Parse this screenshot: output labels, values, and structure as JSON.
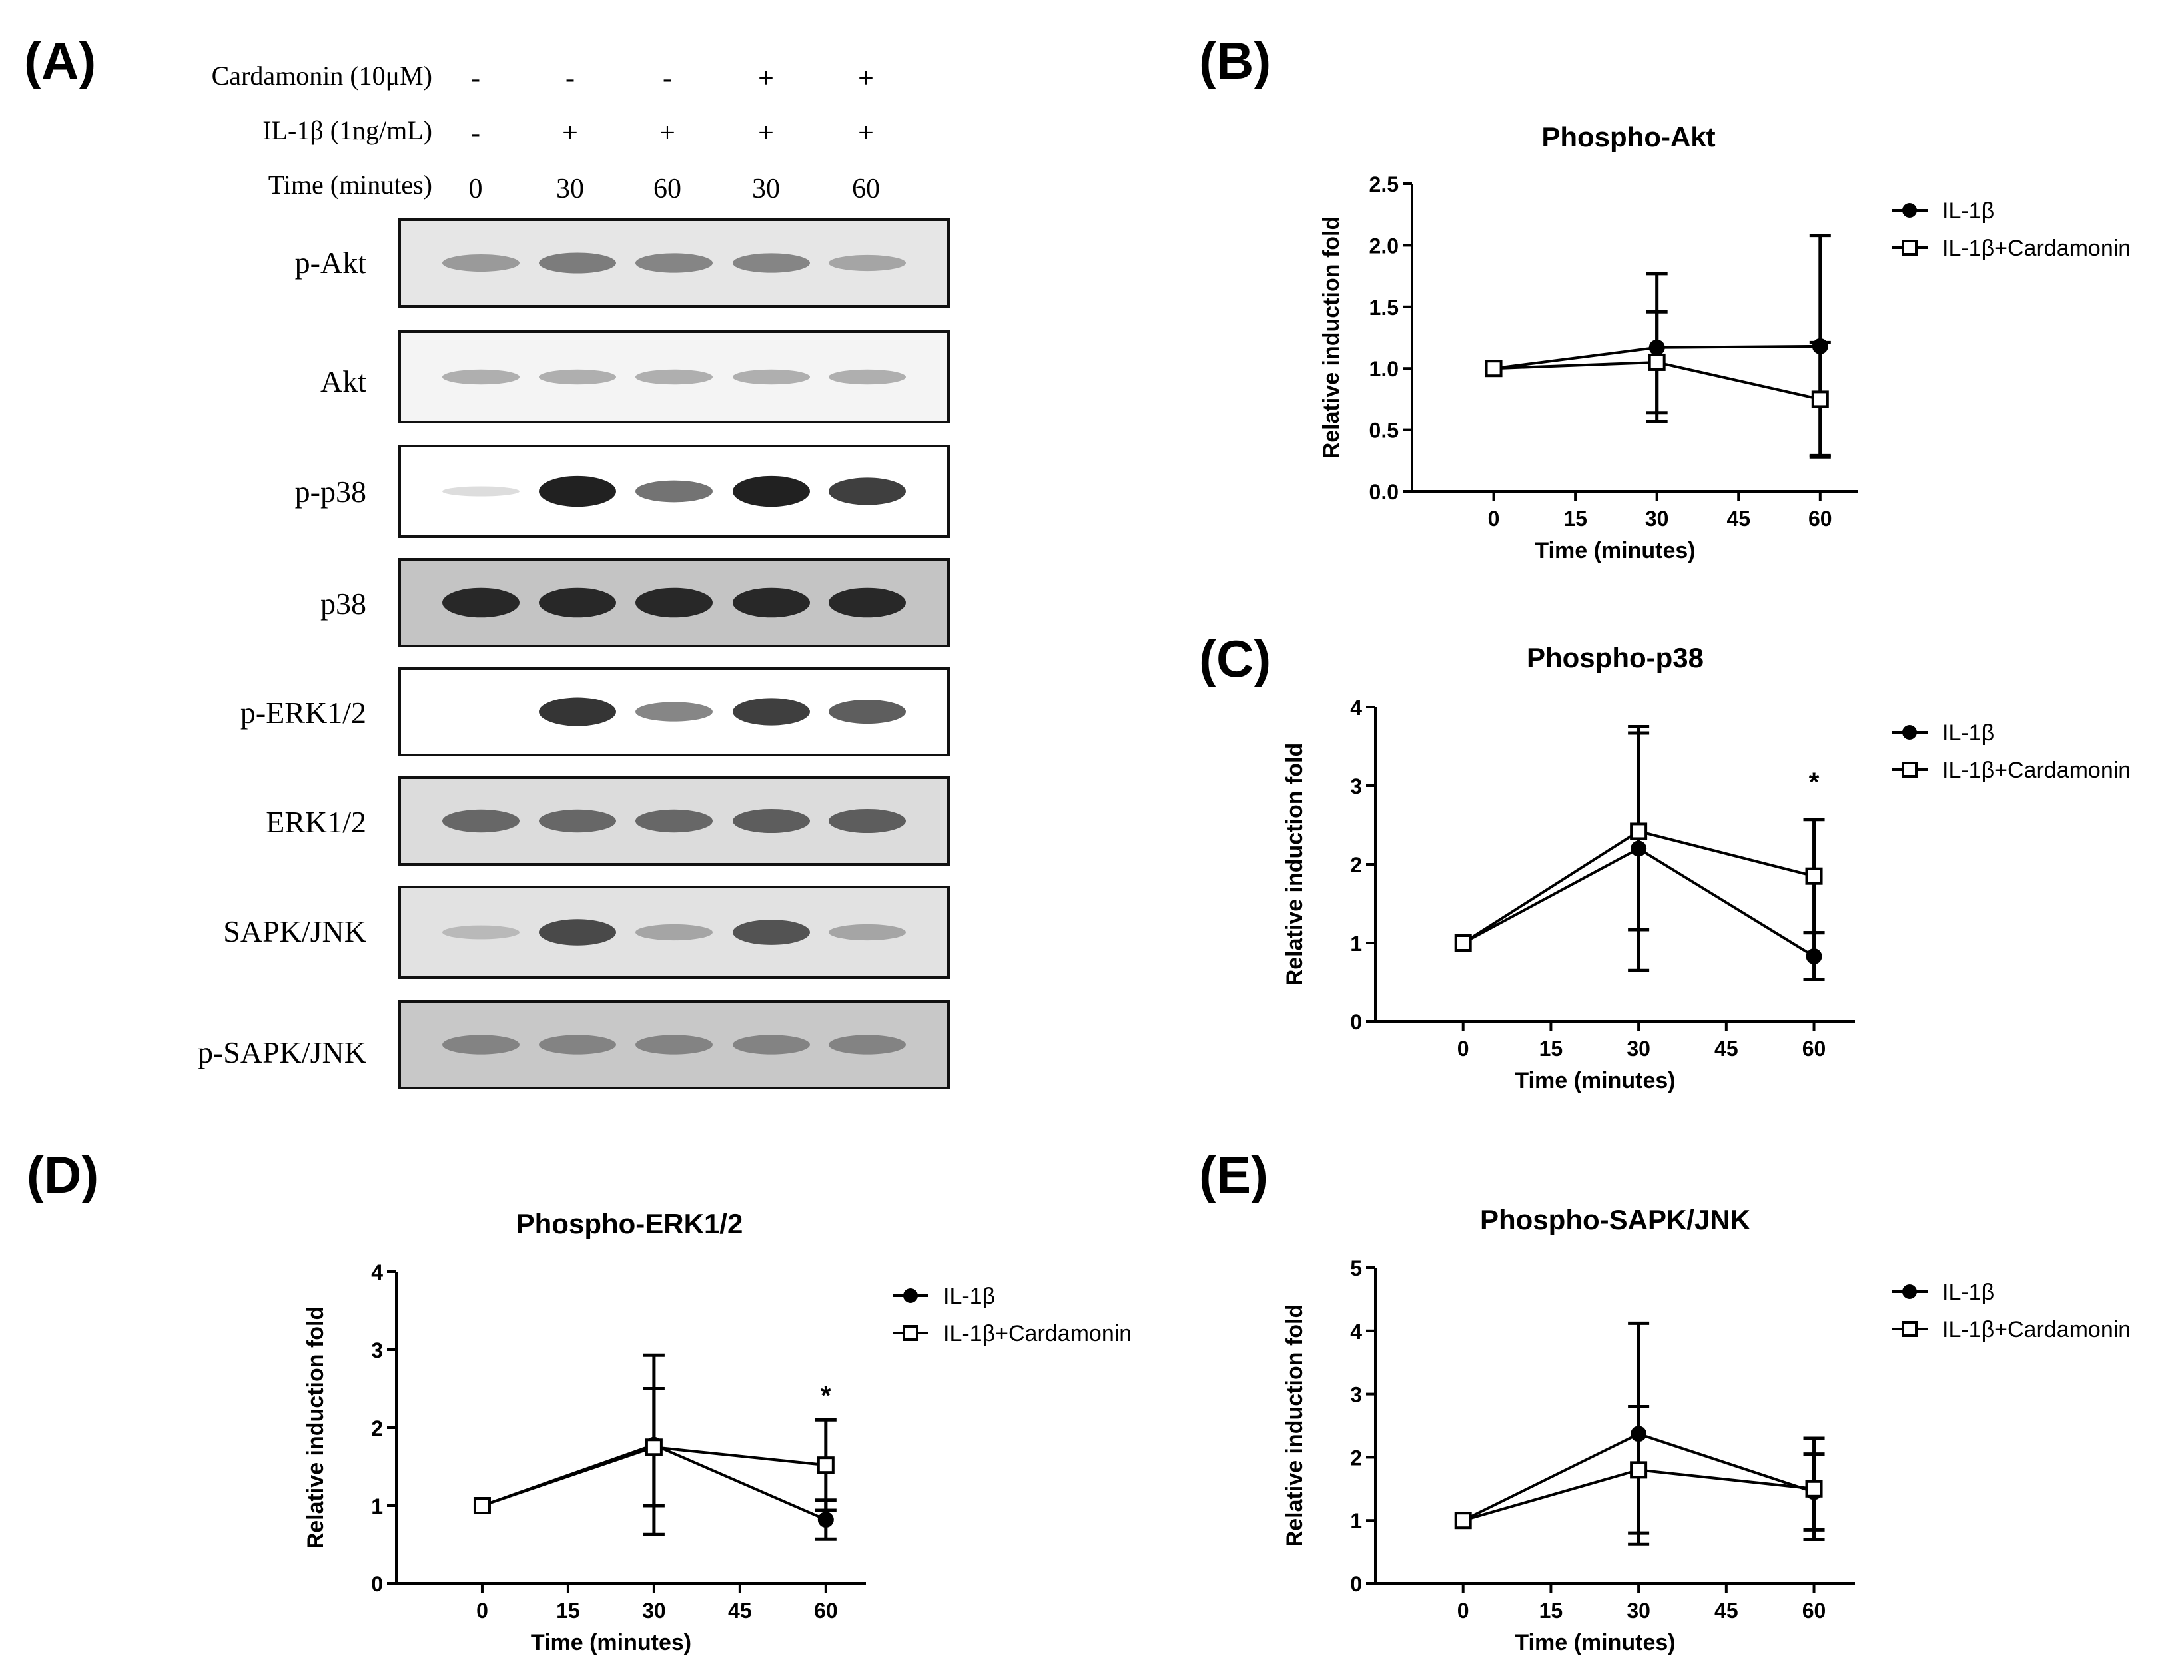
{
  "panels": {
    "a": "(A)",
    "b": "(B)",
    "c": "(C)",
    "d": "(D)",
    "e": "(E)"
  },
  "blot": {
    "conditions": [
      {
        "label": "Cardamonin (10μM)",
        "values": [
          "-",
          "-",
          "-",
          "+",
          "+"
        ]
      },
      {
        "label": "IL-1β (1ng/mL)",
        "values": [
          "-",
          "+",
          "+",
          "+",
          "+"
        ]
      },
      {
        "label": "Time (minutes)",
        "values": [
          "0",
          "30",
          "60",
          "30",
          "60"
        ]
      }
    ],
    "rows": [
      {
        "name": "p-Akt",
        "bg": "#e6e6e6",
        "band": [
          0.35,
          0.5,
          0.45,
          0.45,
          0.3
        ]
      },
      {
        "name": "Akt",
        "bg": "#f4f4f4",
        "band": [
          0.25,
          0.25,
          0.25,
          0.25,
          0.25
        ]
      },
      {
        "name": "p-p38",
        "bg": "#ffffff",
        "band": [
          0.03,
          0.95,
          0.55,
          0.95,
          0.8
        ]
      },
      {
        "name": "p38",
        "bg": "#c4c4c4",
        "band": [
          0.9,
          0.9,
          0.9,
          0.9,
          0.9
        ]
      },
      {
        "name": "p-ERK1/2",
        "bg": "#ffffff",
        "band": [
          0.0,
          0.85,
          0.45,
          0.8,
          0.65
        ]
      },
      {
        "name": "ERK1/2",
        "bg": "#dcdcdc",
        "band": [
          0.6,
          0.6,
          0.6,
          0.65,
          0.65
        ]
      },
      {
        "name": "SAPK/JNK",
        "bg": "#e2e2e2",
        "band": [
          0.2,
          0.75,
          0.3,
          0.7,
          0.3
        ]
      },
      {
        "name": "p-SAPK/JNK",
        "bg": "#c8c8c8",
        "band": [
          0.45,
          0.45,
          0.45,
          0.45,
          0.45
        ]
      }
    ]
  },
  "chart_data": [
    {
      "id": "B",
      "type": "line",
      "title": "Phospho-Akt",
      "xlabel": "Time (minutes)",
      "ylabel": "Relative induction fold",
      "xlim": [
        -15,
        67
      ],
      "xticks": [
        0,
        15,
        30,
        45,
        60
      ],
      "ylim": [
        0,
        2.5
      ],
      "yticks": [
        "0.0",
        "0.5",
        "1.0",
        "1.5",
        "2.0",
        "2.5"
      ],
      "series": [
        {
          "name": "IL-1β",
          "marker": "filled-circle",
          "x": [
            0,
            30,
            60
          ],
          "y": [
            1.0,
            1.17,
            1.18
          ],
          "err": [
            0,
            0.6,
            0.9
          ]
        },
        {
          "name": "IL-1β+Cardamonin",
          "marker": "open-square",
          "x": [
            0,
            30,
            60
          ],
          "y": [
            1.0,
            1.05,
            0.75
          ],
          "err": [
            0,
            0.41,
            0.46
          ]
        }
      ],
      "annotations": []
    },
    {
      "id": "C",
      "type": "line",
      "title": "Phospho-p38",
      "xlabel": "Time (minutes)",
      "ylabel": "Relative induction fold",
      "xlim": [
        -15,
        67
      ],
      "xticks": [
        0,
        15,
        30,
        45,
        60
      ],
      "ylim": [
        0,
        4
      ],
      "yticks": [
        "0",
        "1",
        "2",
        "3",
        "4"
      ],
      "series": [
        {
          "name": "IL-1β",
          "marker": "filled-circle",
          "x": [
            0,
            30,
            60
          ],
          "y": [
            1.0,
            2.2,
            0.83
          ],
          "err": [
            0,
            1.55,
            0.3
          ]
        },
        {
          "name": "IL-1β+Cardamonin",
          "marker": "open-square",
          "x": [
            0,
            30,
            60
          ],
          "y": [
            1.0,
            2.42,
            1.85
          ],
          "err": [
            0,
            1.25,
            0.72
          ]
        }
      ],
      "annotations": [
        {
          "text": "*",
          "x": 60,
          "y": 3.05
        }
      ]
    },
    {
      "id": "D",
      "type": "line",
      "title": "Phospho-ERK1/2",
      "xlabel": "Time (minutes)",
      "ylabel": "Relative induction fold",
      "xlim": [
        -15,
        67
      ],
      "xticks": [
        0,
        15,
        30,
        45,
        60
      ],
      "ylim": [
        0,
        4
      ],
      "yticks": [
        "0",
        "1",
        "2",
        "3",
        "4"
      ],
      "series": [
        {
          "name": "IL-1β",
          "marker": "filled-circle",
          "x": [
            0,
            30,
            60
          ],
          "y": [
            1.0,
            1.78,
            0.82
          ],
          "err": [
            0,
            1.15,
            0.25
          ]
        },
        {
          "name": "IL-1β+Cardamonin",
          "marker": "open-square",
          "x": [
            0,
            30,
            60
          ],
          "y": [
            1.0,
            1.75,
            1.52
          ],
          "err": [
            0,
            0.75,
            0.58
          ]
        }
      ],
      "annotations": [
        {
          "text": "*",
          "x": 60,
          "y": 2.42
        }
      ]
    },
    {
      "id": "E",
      "type": "line",
      "title": "Phospho-SAPK/JNK",
      "xlabel": "Time (minutes)",
      "ylabel": "Relative induction fold",
      "xlim": [
        -15,
        67
      ],
      "xticks": [
        0,
        15,
        30,
        45,
        60
      ],
      "ylim": [
        0,
        5
      ],
      "yticks": [
        "0",
        "1",
        "2",
        "3",
        "4",
        "5"
      ],
      "series": [
        {
          "name": "IL-1β",
          "marker": "filled-circle",
          "x": [
            0,
            30,
            60
          ],
          "y": [
            1.0,
            2.37,
            1.45
          ],
          "err": [
            0,
            1.75,
            0.6
          ]
        },
        {
          "name": "IL-1β+Cardamonin",
          "marker": "open-square",
          "x": [
            0,
            30,
            60
          ],
          "y": [
            1.0,
            1.8,
            1.5
          ],
          "err": [
            0,
            1.0,
            0.8
          ]
        }
      ],
      "annotations": []
    }
  ]
}
